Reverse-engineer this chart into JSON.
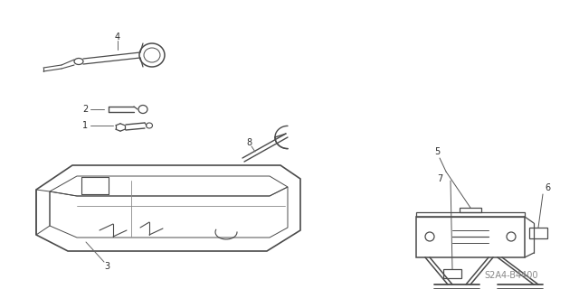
{
  "background_color": "#ffffff",
  "line_color": "#4a4a4a",
  "text_color": "#2a2a2a",
  "diagram_code": "S2A4-B4400",
  "fig_width": 6.4,
  "fig_height": 3.2,
  "dpi": 100
}
